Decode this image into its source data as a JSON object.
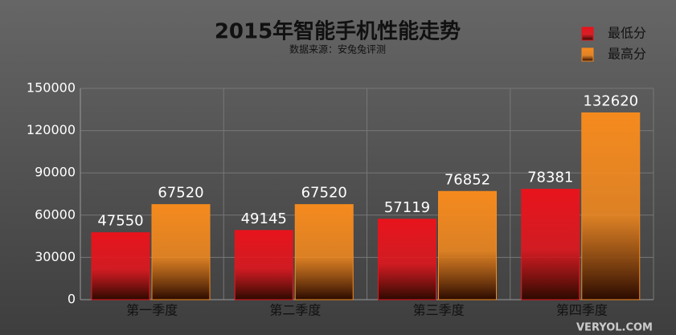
{
  "chart_data": {
    "type": "bar",
    "title": "2015年智能手机性能走势",
    "subtitle": "数据来源：安兔兔评测",
    "categories": [
      "第一季度",
      "第二季度",
      "第三季度",
      "第四季度"
    ],
    "series": [
      {
        "name": "最低分",
        "color": "#e8141c",
        "values": [
          47550,
          49145,
          57119,
          78381
        ]
      },
      {
        "name": "最高分",
        "color": "#f58a1e",
        "values": [
          67520,
          67520,
          76852,
          132620
        ]
      }
    ],
    "ylim": [
      0,
      150000
    ],
    "yticks": [
      0,
      30000,
      60000,
      90000,
      120000,
      150000
    ],
    "grid": true,
    "legend": "top-right",
    "watermark": "VERYOL.COM"
  }
}
